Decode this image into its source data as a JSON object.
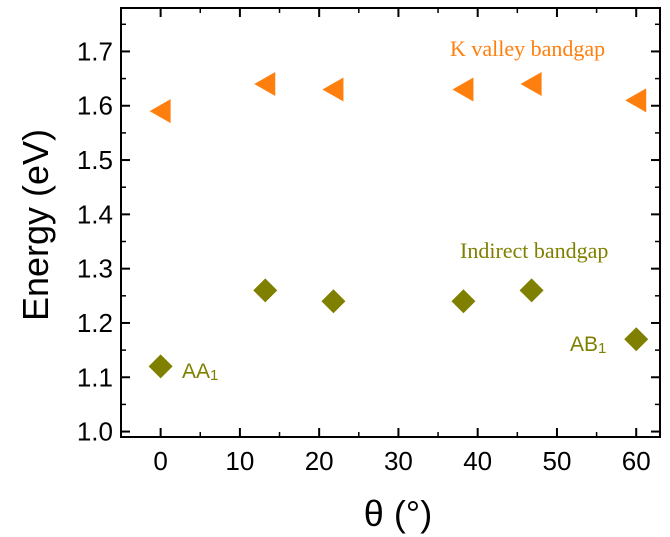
{
  "chart_data": {
    "type": "scatter",
    "xlabel": "θ (°)",
    "ylabel": "Energy (eV)",
    "xlim": [
      -5,
      63
    ],
    "ylim": [
      0.99,
      1.78
    ],
    "x_ticks": [
      "0",
      "10",
      "20",
      "30",
      "40",
      "50",
      "60"
    ],
    "y_ticks": [
      "1.0",
      "1.1",
      "1.2",
      "1.3",
      "1.4",
      "1.5",
      "1.6",
      "1.7"
    ],
    "grid": false,
    "series": [
      {
        "name": "K valley bandgap",
        "marker": "left-triangle",
        "color": "#ff7f0e",
        "x": [
          0,
          13.2,
          21.8,
          38.2,
          46.8,
          60
        ],
        "y": [
          1.59,
          1.64,
          1.63,
          1.63,
          1.64,
          1.61
        ]
      },
      {
        "name": "Indirect bandgap",
        "marker": "diamond",
        "color": "#808000",
        "x": [
          0,
          13.2,
          21.8,
          38.2,
          46.8,
          60
        ],
        "y": [
          1.12,
          1.26,
          1.24,
          1.24,
          1.26,
          1.17
        ]
      }
    ],
    "annotations": [
      {
        "text": "AA",
        "sub": "1",
        "series": "Indirect bandgap"
      },
      {
        "text": "AB",
        "sub": "1",
        "series": "Indirect bandgap"
      }
    ]
  }
}
